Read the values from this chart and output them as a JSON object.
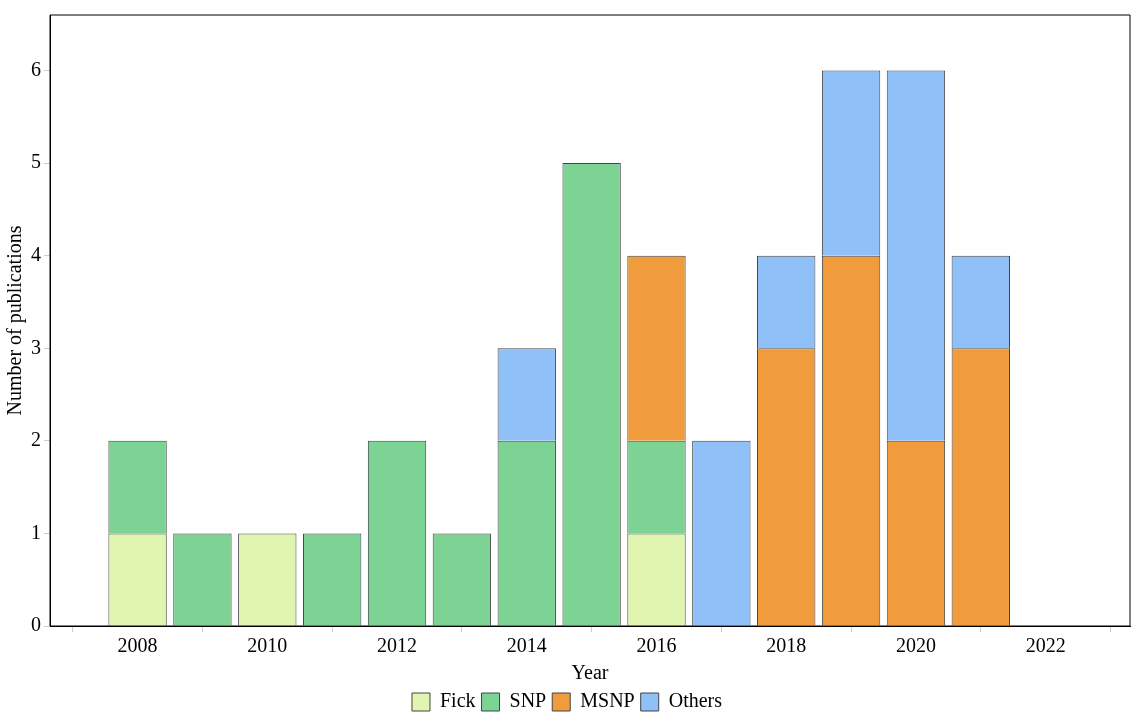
{
  "chart_data": {
    "type": "bar",
    "stacked": true,
    "xlabel": "Year",
    "ylabel": "Number of publications",
    "x": [
      2008,
      2009,
      2010,
      2011,
      2012,
      2013,
      2014,
      2015,
      2016,
      2017,
      2018,
      2019,
      2020,
      2021
    ],
    "xlim": [
      2006.65,
      2023.3
    ],
    "xticks": [
      2008,
      2010,
      2012,
      2014,
      2016,
      2018,
      2020,
      2022
    ],
    "ylim": [
      0,
      6.6
    ],
    "yticks": [
      0,
      1,
      2,
      3,
      4,
      5,
      6
    ],
    "grid": false,
    "legend": "bottom",
    "series": [
      {
        "name": "Fick",
        "color": "#e0f5b0",
        "values": [
          1,
          null,
          1,
          null,
          null,
          null,
          null,
          null,
          1,
          null,
          null,
          null,
          null,
          null
        ]
      },
      {
        "name": "SNP",
        "color": "#7dd394",
        "values": [
          1,
          1,
          null,
          1,
          2,
          1,
          2,
          5,
          1,
          null,
          null,
          null,
          null,
          null
        ]
      },
      {
        "name": "MSNP",
        "color": "#f09c3c",
        "values": [
          null,
          null,
          null,
          null,
          null,
          null,
          null,
          null,
          2,
          null,
          3,
          4,
          2,
          3
        ]
      },
      {
        "name": "Others",
        "color": "#8fc0f7",
        "values": [
          null,
          null,
          null,
          null,
          null,
          null,
          1,
          null,
          null,
          2,
          1,
          2,
          4,
          1
        ]
      }
    ]
  }
}
